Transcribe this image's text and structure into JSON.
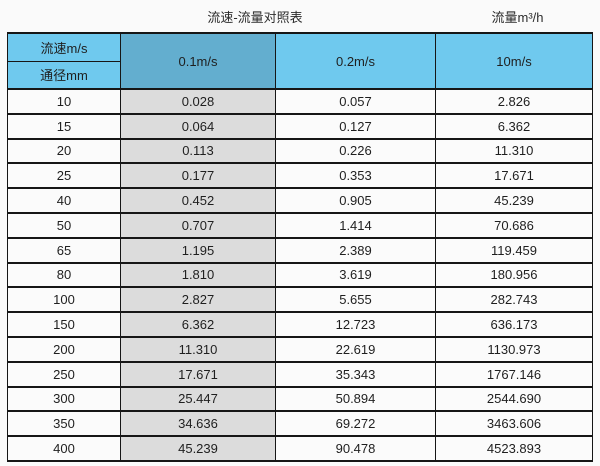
{
  "page": {
    "caption_left": "流速-流量对照表",
    "caption_right": "流量m³/h"
  },
  "table": {
    "corner": {
      "top": "流速m/s",
      "bottom": "通径mm"
    },
    "velocity_columns": [
      "0.1m/s",
      "0.2m/s",
      "10m/s"
    ],
    "rows": [
      {
        "dn": "10",
        "values": [
          "0.028",
          "0.057",
          "2.826"
        ]
      },
      {
        "dn": "15",
        "values": [
          "0.064",
          "0.127",
          "6.362"
        ]
      },
      {
        "dn": "20",
        "values": [
          "0.113",
          "0.226",
          "11.310"
        ]
      },
      {
        "dn": "25",
        "values": [
          "0.177",
          "0.353",
          "17.671"
        ]
      },
      {
        "dn": "40",
        "values": [
          "0.452",
          "0.905",
          "45.239"
        ]
      },
      {
        "dn": "50",
        "values": [
          "0.707",
          "1.414",
          "70.686"
        ]
      },
      {
        "dn": "65",
        "values": [
          "1.195",
          "2.389",
          "119.459"
        ]
      },
      {
        "dn": "80",
        "values": [
          "1.810",
          "3.619",
          "180.956"
        ]
      },
      {
        "dn": "100",
        "values": [
          "2.827",
          "5.655",
          "282.743"
        ]
      },
      {
        "dn": "150",
        "values": [
          "6.362",
          "12.723",
          "636.173"
        ]
      },
      {
        "dn": "200",
        "values": [
          "11.310",
          "22.619",
          "1130.973"
        ]
      },
      {
        "dn": "250",
        "values": [
          "17.671",
          "35.343",
          "1767.146"
        ]
      },
      {
        "dn": "300",
        "values": [
          "25.447",
          "50.894",
          "2544.690"
        ]
      },
      {
        "dn": "350",
        "values": [
          "34.636",
          "69.272",
          "3463.606"
        ]
      },
      {
        "dn": "400",
        "values": [
          "45.239",
          "90.478",
          "4523.893"
        ]
      }
    ]
  },
  "colors": {
    "header_blue": "#6fc9ee",
    "highlight_blue": "#63aecf",
    "gray_column": "#dcdcdc",
    "border": "#161616"
  },
  "chart_data": {
    "type": "table",
    "title": "流速-流量对照表",
    "unit_label": "流量m³/h",
    "columns": [
      "通径mm",
      "0.1m/s",
      "0.2m/s",
      "10m/s"
    ],
    "rows": [
      [
        "10",
        "0.028",
        "0.057",
        "2.826"
      ],
      [
        "15",
        "0.064",
        "0.127",
        "6.362"
      ],
      [
        "20",
        "0.113",
        "0.226",
        "11.310"
      ],
      [
        "25",
        "0.177",
        "0.353",
        "17.671"
      ],
      [
        "40",
        "0.452",
        "0.905",
        "45.239"
      ],
      [
        "50",
        "0.707",
        "1.414",
        "70.686"
      ],
      [
        "65",
        "1.195",
        "2.389",
        "119.459"
      ],
      [
        "80",
        "1.810",
        "3.619",
        "180.956"
      ],
      [
        "100",
        "2.827",
        "5.655",
        "282.743"
      ],
      [
        "150",
        "6.362",
        "12.723",
        "636.173"
      ],
      [
        "200",
        "11.310",
        "22.619",
        "1130.973"
      ],
      [
        "250",
        "17.671",
        "35.343",
        "1767.146"
      ],
      [
        "300",
        "25.447",
        "50.894",
        "2544.690"
      ],
      [
        "350",
        "34.636",
        "69.272",
        "3463.606"
      ],
      [
        "400",
        "45.239",
        "90.478",
        "4523.893"
      ]
    ]
  }
}
